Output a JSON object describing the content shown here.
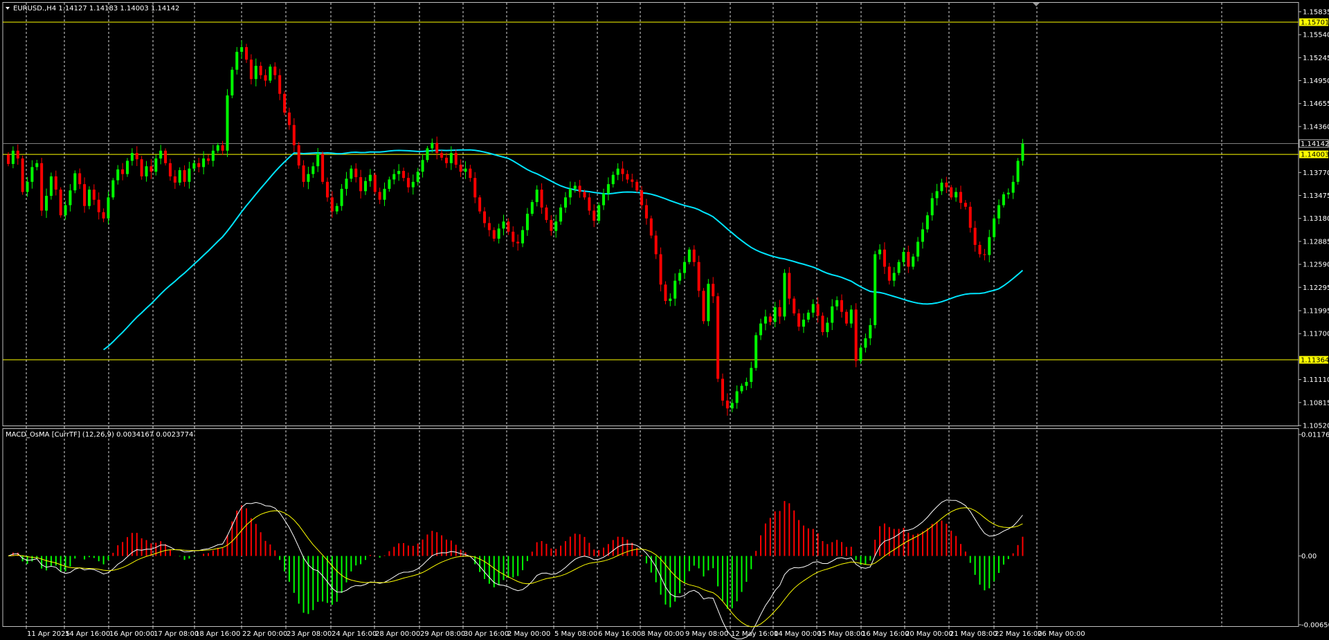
{
  "main_header": {
    "symbol_line": "EURUSD.,H4  1.14127 1.14183 1.14003 1.14142"
  },
  "indicator_header": {
    "text": "MACD_OsMA [CurrTF] (12,26,9) 0.0034167 0.0023774"
  },
  "colors": {
    "background": "#000000",
    "bull_candle": "#00ff00",
    "bear_candle": "#ff0000",
    "moving_average": "#00e5ff",
    "level_line": "#ffff00",
    "grid": "#ffffff",
    "osma_positive": "#ff0000",
    "osma_negative": "#00ff00",
    "macd_line": "#ffffff",
    "signal_line": "#ffff00"
  },
  "price_axis": {
    "ticks": [
      "1.15835",
      "1.15540",
      "1.15245",
      "1.14950",
      "1.14655",
      "1.14360",
      "1.13770",
      "1.13475",
      "1.13180",
      "1.12885",
      "1.12590",
      "1.12295",
      "1.11995",
      "1.11700",
      "1.11110",
      "1.10815",
      "1.10520"
    ],
    "current_price": "1.14142",
    "level_labels": [
      "1.15701",
      "1.14003",
      "1.11364"
    ]
  },
  "indicator_axis": {
    "ticks": [
      "0.0117613",
      "0.00",
      "-0.006503"
    ]
  },
  "time_axis": {
    "labels": [
      "11 Apr 2025",
      "14 Apr 16:00",
      "16 Apr 00:00",
      "17 Apr 08:00",
      "18 Apr 16:00",
      "22 Apr 00:00",
      "23 Apr 08:00",
      "24 Apr 16:00",
      "28 Apr 00:00",
      "29 Apr 08:00",
      "30 Apr 16:00",
      "2 May 00:00",
      "5 May 08:00",
      "6 May 16:00",
      "8 May 00:00",
      "9 May 08:00",
      "12 May 16:00",
      "14 May 00:00",
      "15 May 08:00",
      "16 May 16:00",
      "20 May 00:00",
      "21 May 08:00",
      "22 May 16:00",
      "26 May 00:00"
    ]
  },
  "chart_data": {
    "type": "candlestick",
    "symbol": "EURUSD.",
    "timeframe": "H4",
    "ylim": [
      1.1052,
      1.1595
    ],
    "levels": [
      1.15701,
      1.14003,
      1.11364
    ],
    "close": [
      1.1388,
      1.1405,
      1.1395,
      1.1352,
      1.1365,
      1.1384,
      1.1389,
      1.1328,
      1.1347,
      1.1372,
      1.1355,
      1.1322,
      1.1335,
      1.1354,
      1.1376,
      1.1362,
      1.1334,
      1.1355,
      1.1342,
      1.1326,
      1.1318,
      1.1345,
      1.1367,
      1.1381,
      1.1375,
      1.1392,
      1.1402,
      1.1394,
      1.1372,
      1.1385,
      1.1378,
      1.1395,
      1.1405,
      1.1389,
      1.1372,
      1.1364,
      1.138,
      1.1365,
      1.1382,
      1.1389,
      1.1384,
      1.1395,
      1.1392,
      1.1405,
      1.1412,
      1.1405,
      1.1476,
      1.1509,
      1.1532,
      1.1538,
      1.1522,
      1.1497,
      1.1514,
      1.1502,
      1.1495,
      1.1513,
      1.1502,
      1.1478,
      1.1454,
      1.1438,
      1.1412,
      1.1386,
      1.1365,
      1.1375,
      1.1385,
      1.1401,
      1.1365,
      1.1345,
      1.1327,
      1.1334,
      1.1356,
      1.1369,
      1.1382,
      1.1371,
      1.1353,
      1.1366,
      1.1374,
      1.1352,
      1.1342,
      1.1356,
      1.1368,
      1.1375,
      1.1379,
      1.137,
      1.1358,
      1.1365,
      1.1378,
      1.1393,
      1.1408,
      1.1415,
      1.1402,
      1.1396,
      1.1389,
      1.1402,
      1.1387,
      1.1378,
      1.1382,
      1.137,
      1.1345,
      1.1327,
      1.1312,
      1.1303,
      1.1292,
      1.1305,
      1.1314,
      1.1301,
      1.1288,
      1.1286,
      1.1303,
      1.1324,
      1.1339,
      1.1355,
      1.1332,
      1.1316,
      1.1302,
      1.1314,
      1.1332,
      1.1345,
      1.1356,
      1.136,
      1.1352,
      1.1345,
      1.1328,
      1.1315,
      1.1335,
      1.135,
      1.1362,
      1.1374,
      1.1382,
      1.1375,
      1.1368,
      1.1365,
      1.1354,
      1.1335,
      1.1318,
      1.1296,
      1.1272,
      1.1233,
      1.1212,
      1.1215,
      1.1238,
      1.1248,
      1.1262,
      1.1278,
      1.1262,
      1.1225,
      1.1186,
      1.1234,
      1.1218,
      1.1112,
      1.1084,
      1.1074,
      1.1081,
      1.1096,
      1.1103,
      1.1108,
      1.1126,
      1.1168,
      1.1183,
      1.1192,
      1.1185,
      1.1204,
      1.1192,
      1.1248,
      1.1215,
      1.1196,
      1.1179,
      1.1188,
      1.1197,
      1.1208,
      1.1193,
      1.1172,
      1.1184,
      1.1205,
      1.1213,
      1.1198,
      1.1183,
      1.1201,
      1.1135,
      1.1152,
      1.1164,
      1.1181,
      1.1272,
      1.1278,
      1.1256,
      1.1238,
      1.1248,
      1.1262,
      1.1275,
      1.1256,
      1.1269,
      1.1288,
      1.1304,
      1.1322,
      1.1344,
      1.1353,
      1.1364,
      1.1358,
      1.1345,
      1.1352,
      1.1338,
      1.1333,
      1.1306,
      1.1284,
      1.1272,
      1.1271,
      1.1294,
      1.1318,
      1.1335,
      1.1349,
      1.1351,
      1.1365,
      1.1392,
      1.1414
    ],
    "ma_period_note_visible": false,
    "indicator": {
      "name": "MACD_OsMA [CurrTF]",
      "params": [
        12,
        26,
        9
      ],
      "values": [
        0.0034167,
        0.0023774
      ],
      "ylim": [
        -0.006503,
        0.0117613
      ]
    }
  }
}
